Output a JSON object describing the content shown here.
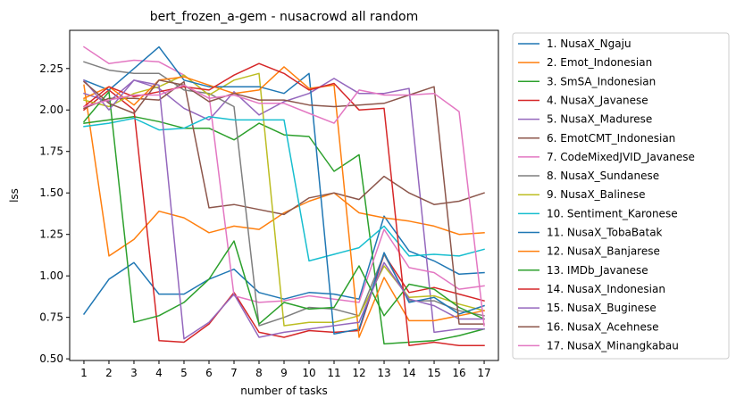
{
  "chart_data": {
    "type": "line",
    "title": "bert_frozen_a-gem - nusacrowd all random",
    "xlabel": "number of tasks",
    "ylabel": "lss",
    "x": [
      1,
      2,
      3,
      4,
      5,
      6,
      7,
      8,
      9,
      10,
      11,
      12,
      13,
      14,
      15,
      16,
      17
    ],
    "xlim": [
      0.43,
      17.57
    ],
    "ylim": [
      0.49,
      2.48
    ],
    "yticks": [
      0.5,
      0.75,
      1.0,
      1.25,
      1.5,
      1.75,
      2.0,
      2.25
    ],
    "ytick_labels": [
      "0.50",
      "0.75",
      "1.00",
      "1.25",
      "1.50",
      "1.75",
      "2.00",
      "2.25"
    ],
    "legend_position": "outside-right",
    "series": [
      {
        "name": "1. NusaX_Ngaju",
        "color": "#1f77b4",
        "values": [
          0.77,
          0.98,
          1.08,
          0.89,
          0.89,
          0.98,
          1.04,
          0.9,
          0.86,
          0.9,
          0.89,
          0.86,
          1.36,
          1.15,
          1.09,
          1.01,
          1.02
        ]
      },
      {
        "name": "2. Emot_Indonesian",
        "color": "#ff7f0e",
        "values": [
          2.15,
          1.12,
          1.22,
          1.39,
          1.35,
          1.26,
          1.3,
          1.28,
          1.38,
          1.45,
          1.5,
          1.38,
          1.35,
          1.33,
          1.3,
          1.25,
          1.26
        ]
      },
      {
        "name": "3. SmSA_Indonesian",
        "color": "#2ca02c",
        "values": [
          1.92,
          1.94,
          1.96,
          1.93,
          1.89,
          1.89,
          1.82,
          1.92,
          1.85,
          1.84,
          1.63,
          1.73,
          0.59,
          0.6,
          0.61,
          0.64,
          0.68
        ]
      },
      {
        "name": "4. NusaX_Javanese",
        "color": "#d62728",
        "values": [
          2.0,
          2.12,
          2.0,
          0.61,
          0.6,
          0.71,
          0.9,
          0.66,
          0.63,
          0.67,
          0.66,
          0.67,
          1.13,
          0.9,
          0.93,
          0.89,
          0.85
        ]
      },
      {
        "name": "5. NusaX_Madurese",
        "color": "#9467bd",
        "values": [
          2.1,
          2.05,
          2.18,
          2.13,
          2.01,
          1.94,
          2.11,
          1.97,
          2.05,
          2.1,
          2.19,
          2.1,
          2.1,
          2.13,
          0.66,
          0.68,
          0.68
        ]
      },
      {
        "name": "6. EmotCMT_Indonesian",
        "color": "#8c564b",
        "values": [
          2.01,
          2.07,
          2.07,
          2.06,
          2.17,
          1.41,
          1.43,
          1.4,
          1.37,
          1.47,
          1.5,
          1.46,
          1.6,
          1.5,
          1.43,
          1.45,
          1.5
        ]
      },
      {
        "name": "7. CodeMixedJVID_Javanese",
        "color": "#e377c2",
        "values": [
          2.38,
          2.28,
          2.3,
          2.29,
          2.21,
          2.09,
          0.88,
          0.84,
          0.85,
          0.88,
          0.86,
          0.84,
          1.28,
          1.05,
          1.02,
          0.92,
          0.94
        ]
      },
      {
        "name": "8. NusaX_Sundanese",
        "color": "#7f7f7f",
        "values": [
          2.29,
          2.24,
          2.22,
          2.22,
          2.12,
          2.1,
          2.02,
          0.7,
          0.75,
          0.81,
          0.8,
          0.76,
          1.13,
          0.85,
          0.85,
          0.79,
          0.76
        ]
      },
      {
        "name": "9. NusaX_Balinese",
        "color": "#bcbd22",
        "values": [
          2.06,
          2.02,
          2.1,
          2.14,
          2.21,
          2.09,
          2.18,
          2.22,
          0.7,
          0.72,
          0.72,
          0.76,
          1.06,
          0.87,
          0.88,
          0.83,
          0.79
        ]
      },
      {
        "name": "10. Sentiment_Karonese",
        "color": "#17becf",
        "values": [
          1.9,
          1.92,
          1.95,
          1.88,
          1.89,
          1.96,
          1.94,
          1.94,
          1.94,
          1.09,
          1.13,
          1.17,
          1.3,
          1.12,
          1.13,
          1.12,
          1.16
        ]
      },
      {
        "name": "11. NusaX_TobaBatak",
        "color": "#1f77b4",
        "values": [
          2.18,
          2.12,
          2.25,
          2.38,
          2.18,
          2.14,
          2.14,
          2.14,
          2.1,
          2.22,
          0.65,
          0.68,
          1.14,
          0.84,
          0.87,
          0.77,
          0.82
        ]
      },
      {
        "name": "12. NusaX_Banjarese",
        "color": "#ff7f0e",
        "values": [
          2.07,
          2.14,
          2.03,
          2.18,
          2.2,
          2.15,
          2.1,
          2.12,
          2.26,
          2.13,
          2.15,
          0.63,
          0.99,
          0.73,
          0.73,
          0.76,
          0.79
        ]
      },
      {
        "name": "13. IMDb_Javanese",
        "color": "#2ca02c",
        "values": [
          1.93,
          2.11,
          0.72,
          0.76,
          0.84,
          0.98,
          1.21,
          0.71,
          0.84,
          0.8,
          0.81,
          1.06,
          0.76,
          0.95,
          0.92,
          0.81,
          0.74
        ]
      },
      {
        "name": "14. NusaX_Indonesian",
        "color": "#d62728",
        "values": [
          2.02,
          2.14,
          2.08,
          2.11,
          2.14,
          2.12,
          2.21,
          2.28,
          2.22,
          2.12,
          2.16,
          2.0,
          2.01,
          0.58,
          0.6,
          0.58,
          0.58
        ]
      },
      {
        "name": "15. NusaX_Buginese",
        "color": "#9467bd",
        "values": [
          2.18,
          2.0,
          2.18,
          2.15,
          0.62,
          0.72,
          0.89,
          0.63,
          0.66,
          0.68,
          0.7,
          0.72,
          1.08,
          0.86,
          0.82,
          0.74,
          0.74
        ]
      },
      {
        "name": "16. NusaX_Acehnese",
        "color": "#8c564b",
        "values": [
          2.17,
          2.04,
          1.98,
          2.18,
          2.15,
          2.05,
          2.1,
          2.06,
          2.06,
          2.03,
          2.02,
          2.03,
          2.04,
          2.09,
          2.14,
          0.71,
          0.71
        ]
      },
      {
        "name": "17. NusaX_Minangkabau",
        "color": "#e377c2",
        "values": [
          2.02,
          2.06,
          2.09,
          2.09,
          2.15,
          2.07,
          2.09,
          2.04,
          2.04,
          1.98,
          1.92,
          2.12,
          2.09,
          2.09,
          2.1,
          1.99,
          0.7
        ]
      }
    ]
  }
}
